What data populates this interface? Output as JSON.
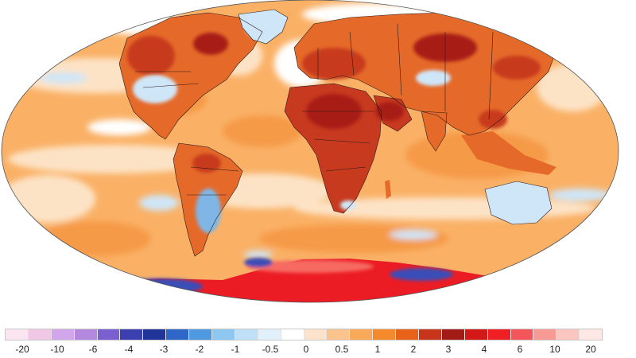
{
  "legend": {
    "colors": [
      "#fbe5f0",
      "#f0c8e6",
      "#d2a6ea",
      "#b389e0",
      "#7a5fd0",
      "#3b3fb0",
      "#21349a",
      "#2e67c8",
      "#4f99e0",
      "#8ec8f2",
      "#bfe0f7",
      "#e2f0fb",
      "#ffffff",
      "#fde2cc",
      "#fbc48f",
      "#f9a95a",
      "#f48a2c",
      "#e8621a",
      "#c8351b",
      "#a31b16",
      "#d41818",
      "#ef1f24",
      "#f4555a",
      "#f79a95",
      "#fbc6c0",
      "#fde8e5"
    ],
    "labels": [
      "-20",
      "-10",
      "-6",
      "-4",
      "-3",
      "-2",
      "-1",
      "-0.5",
      "0",
      "0.5",
      "1",
      "2",
      "3",
      "4",
      "6",
      "10",
      "20"
    ]
  },
  "map": {
    "colors": {
      "ocean_base": "#fab166",
      "ocean_warm": "#f59a47",
      "ocean_cool": "#fde3c6",
      "neutral": "#ffffff",
      "cold_light": "#cfe6f8",
      "cold": "#7fb6e6",
      "cold_deep": "#3a4eb7",
      "land_warm": "#e56a2a",
      "land_hot": "#c73a1f",
      "land_very_hot": "#a81f18",
      "antarctic_hot": "#ec1c24",
      "antarctic_edge": "#f66a62",
      "border": "#2a1a1a"
    }
  }
}
